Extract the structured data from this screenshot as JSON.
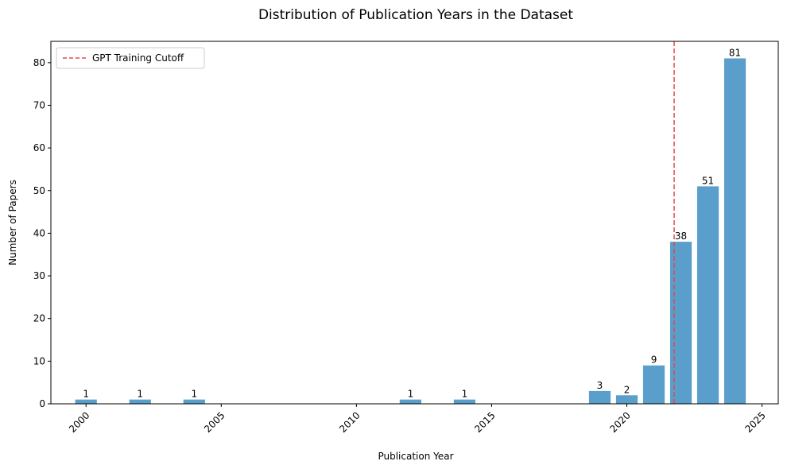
{
  "chart_data": {
    "type": "bar",
    "title": "Distribution of Publication Years in the Dataset",
    "xlabel": "Publication Year",
    "ylabel": "Number of Papers",
    "x": [
      2000,
      2002,
      2004,
      2012,
      2014,
      2019,
      2020,
      2021,
      2022,
      2023,
      2024
    ],
    "values": [
      1,
      1,
      1,
      1,
      1,
      3,
      2,
      9,
      38,
      51,
      81
    ],
    "bar_color": "#5a9fcc",
    "xlim": [
      1998.7,
      2025.6
    ],
    "ylim": [
      0,
      85
    ],
    "xticks": [
      2000,
      2005,
      2010,
      2015,
      2020,
      2025
    ],
    "yticks": [
      0,
      10,
      20,
      30,
      40,
      50,
      60,
      70,
      80
    ],
    "xtick_rotation": 45,
    "grid": false,
    "reference_line": {
      "label": "GPT Training Cutoff",
      "x": 2021.75,
      "color": "#e8474a",
      "style": "dashed"
    },
    "legend_position": "top-left"
  }
}
